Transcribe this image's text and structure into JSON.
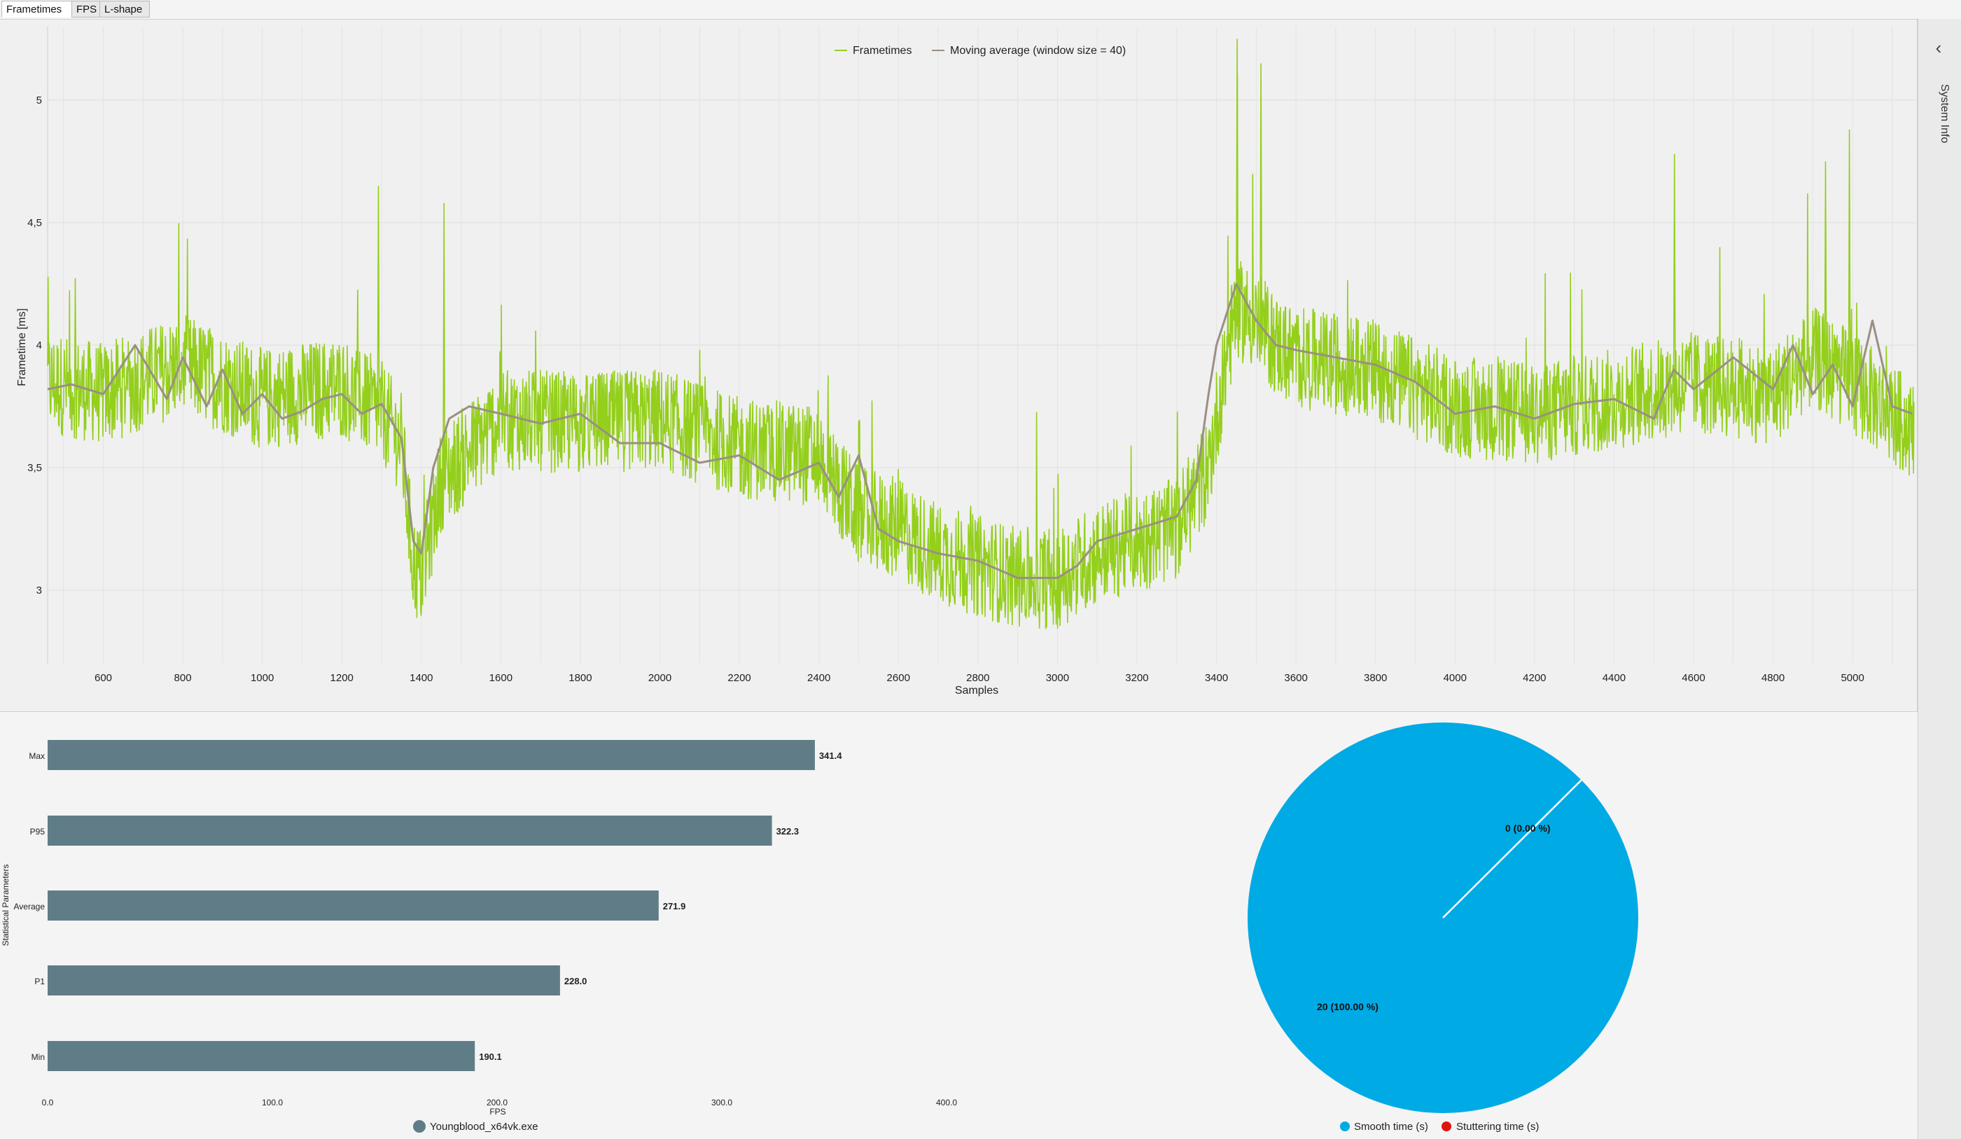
{
  "tabs": [
    {
      "label": "Frametimes",
      "active": true
    },
    {
      "label": "FPS",
      "active": false
    },
    {
      "label": "L-shape",
      "active": false
    }
  ],
  "side_panel": {
    "label": "System Info",
    "toggle_icon": "chevron-left-icon"
  },
  "colors": {
    "frametimes": "#94cf1c",
    "moving_average": "#9a8f83",
    "bars": "#607d87",
    "smooth": "#00aae4",
    "stuttering": "#e0140e"
  },
  "frametime_chart": {
    "legend": {
      "frametimes": "Frametimes",
      "moving_average": "Moving average (window size = 40)"
    },
    "ylabel": "Frametime [ms]",
    "xlabel": "Samples",
    "yticks": [
      "3",
      "3,5",
      "4",
      "4,5",
      "5"
    ],
    "xticks": [
      "600",
      "800",
      "1000",
      "1200",
      "1400",
      "1600",
      "1800",
      "2000",
      "2200",
      "2400",
      "2600",
      "2800",
      "3000",
      "3200",
      "3400",
      "3600",
      "3800",
      "4000",
      "4200",
      "4400",
      "4600",
      "4800",
      "5000"
    ]
  },
  "stats_chart": {
    "ylabel": "Statistical Parameters",
    "xlabel": "FPS",
    "xticks": [
      "0.0",
      "100.0",
      "200.0",
      "300.0",
      "400.0"
    ],
    "bars": [
      {
        "label": "Max",
        "value_label": "341.4"
      },
      {
        "label": "P95",
        "value_label": "322.3"
      },
      {
        "label": "Average",
        "value_label": "271.9"
      },
      {
        "label": "P1",
        "value_label": "228.0"
      },
      {
        "label": "Min",
        "value_label": "190.1"
      }
    ],
    "legend": "Youngblood_x64vk.exe"
  },
  "pie_chart": {
    "slice_labels": {
      "smooth": "20 (100.00 %)",
      "stuttering": "0 (0.00 %)"
    },
    "legend": {
      "smooth": "Smooth time (s)",
      "stuttering": "Stuttering time (s)"
    }
  },
  "chart_data": [
    {
      "type": "line",
      "title": "",
      "xlabel": "Samples",
      "ylabel": "Frametime [ms]",
      "xlim": [
        460,
        5160
      ],
      "ylim": [
        2.7,
        5.3
      ],
      "grid": true,
      "legend_position": "top-center",
      "series": [
        {
          "name": "Frametimes",
          "x": [
            460,
            600,
            800,
            1000,
            1200,
            1300,
            1350,
            1380,
            1400,
            1450,
            1600,
            1800,
            2000,
            2200,
            2400,
            2500,
            2600,
            2700,
            2800,
            2900,
            3000,
            3100,
            3200,
            3300,
            3380,
            3420,
            3450,
            3500,
            3550,
            3600,
            3800,
            4000,
            4200,
            4400,
            4600,
            4800,
            4900,
            5000,
            5150
          ],
          "y": [
            3.85,
            3.8,
            3.92,
            3.78,
            3.83,
            3.73,
            3.6,
            3.1,
            3.05,
            3.45,
            3.7,
            3.68,
            3.7,
            3.58,
            3.55,
            3.3,
            3.25,
            3.15,
            3.1,
            3.05,
            3.05,
            3.15,
            3.2,
            3.25,
            3.5,
            3.9,
            4.15,
            4.1,
            4.0,
            3.95,
            3.9,
            3.75,
            3.72,
            3.78,
            3.85,
            3.8,
            3.95,
            3.85,
            3.65
          ]
        },
        {
          "name": "Moving average (window size = 40)",
          "x": [
            460,
            520,
            600,
            680,
            760,
            800,
            860,
            900,
            950,
            1000,
            1050,
            1100,
            1150,
            1200,
            1250,
            1300,
            1350,
            1380,
            1400,
            1430,
            1470,
            1520,
            1600,
            1700,
            1800,
            1900,
            2000,
            2100,
            2200,
            2300,
            2400,
            2450,
            2500,
            2550,
            2600,
            2700,
            2800,
            2900,
            3000,
            3050,
            3100,
            3200,
            3300,
            3350,
            3380,
            3400,
            3450,
            3500,
            3550,
            3600,
            3700,
            3800,
            3900,
            4000,
            4100,
            4200,
            4300,
            4400,
            4500,
            4550,
            4600,
            4700,
            4800,
            4850,
            4900,
            4950,
            5000,
            5050,
            5100,
            5150
          ],
          "y": [
            3.82,
            3.84,
            3.8,
            4.0,
            3.78,
            3.95,
            3.75,
            3.9,
            3.72,
            3.8,
            3.7,
            3.73,
            3.78,
            3.8,
            3.72,
            3.76,
            3.62,
            3.2,
            3.15,
            3.5,
            3.7,
            3.75,
            3.72,
            3.68,
            3.72,
            3.6,
            3.6,
            3.52,
            3.55,
            3.45,
            3.52,
            3.38,
            3.55,
            3.25,
            3.2,
            3.15,
            3.12,
            3.05,
            3.05,
            3.1,
            3.2,
            3.25,
            3.3,
            3.45,
            3.8,
            4.0,
            4.25,
            4.1,
            4.0,
            3.98,
            3.95,
            3.92,
            3.85,
            3.72,
            3.75,
            3.7,
            3.76,
            3.78,
            3.7,
            3.9,
            3.82,
            3.95,
            3.82,
            4.0,
            3.8,
            3.92,
            3.75,
            4.1,
            3.75,
            3.72
          ]
        }
      ]
    },
    {
      "type": "bar",
      "orientation": "horizontal",
      "categories": [
        "Max",
        "P95",
        "Average",
        "P1",
        "Min"
      ],
      "values": [
        341.4,
        322.3,
        271.9,
        228.0,
        190.1
      ],
      "xlabel": "FPS",
      "ylabel": "Statistical Parameters",
      "xlim": [
        0,
        400
      ],
      "series": [
        {
          "name": "Youngblood_x64vk.exe",
          "values": [
            341.4,
            322.3,
            271.9,
            228.0,
            190.1
          ]
        }
      ]
    },
    {
      "type": "pie",
      "categories": [
        "Smooth time (s)",
        "Stuttering time (s)"
      ],
      "values": [
        20,
        0
      ],
      "labels": [
        "20 (100.00 %)",
        "0 (0.00 %)"
      ]
    }
  ]
}
